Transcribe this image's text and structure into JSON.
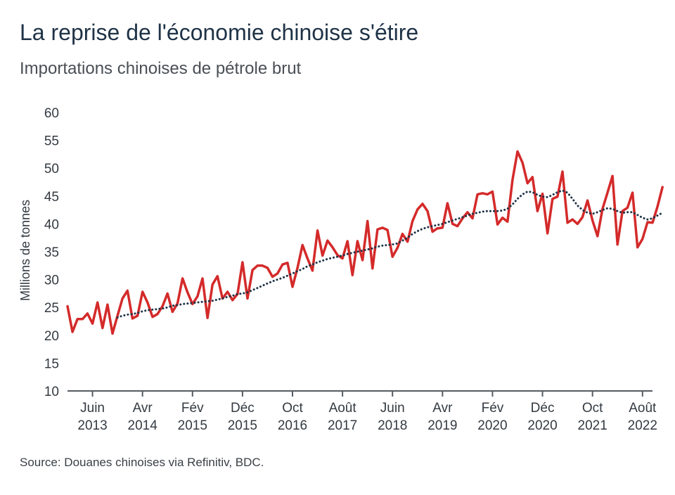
{
  "title": "La reprise de l'économie chinoise s'étire",
  "subtitle": "Importations chinoises de pétrole brut",
  "source": "Source: Douanes chinoises via Refinitiv, BDC.",
  "chart_data": {
    "type": "line",
    "title": "La reprise de l'économie chinoise s'étire",
    "subtitle": "Importations chinoises de pétrole brut",
    "ylabel": "Millions de tonnes",
    "ylim": [
      10,
      60
    ],
    "yticks": [
      10,
      15,
      20,
      25,
      30,
      35,
      40,
      45,
      50,
      55,
      60
    ],
    "xticks": [
      {
        "month": "Juin",
        "year": "2013",
        "date": "2013-06"
      },
      {
        "month": "Avr",
        "year": "2014",
        "date": "2014-04"
      },
      {
        "month": "Fév",
        "year": "2015",
        "date": "2015-02"
      },
      {
        "month": "Déc",
        "year": "2015",
        "date": "2015-12"
      },
      {
        "month": "Oct",
        "year": "2016",
        "date": "2016-10"
      },
      {
        "month": "Août",
        "year": "2017",
        "date": "2017-08"
      },
      {
        "month": "Juin",
        "year": "2018",
        "date": "2018-06"
      },
      {
        "month": "Avr",
        "year": "2019",
        "date": "2019-04"
      },
      {
        "month": "Fév",
        "year": "2020",
        "date": "2020-02"
      },
      {
        "month": "Déc",
        "year": "2020",
        "date": "2020-12"
      },
      {
        "month": "Oct",
        "year": "2021",
        "date": "2021-10"
      },
      {
        "month": "Août",
        "year": "2022",
        "date": "2022-08"
      }
    ],
    "x_start": "2013-01",
    "x_end": "2022-10",
    "grid": false,
    "series": [
      {
        "style": "solid",
        "color": "#d42a2a",
        "values": [
          25.2,
          20.6,
          22.9,
          22.9,
          23.9,
          22.1,
          25.9,
          21.3,
          25.5,
          20.3,
          23.5,
          26.6,
          28.0,
          23.0,
          23.5,
          27.8,
          25.9,
          23.3,
          23.8,
          25.2,
          27.5,
          24.2,
          25.7,
          30.2,
          27.7,
          25.6,
          27.0,
          30.2,
          23.1,
          29.1,
          30.6,
          26.6,
          27.8,
          26.3,
          27.4,
          33.1,
          26.6,
          31.7,
          32.5,
          32.5,
          32.1,
          30.5,
          31.1,
          32.7,
          33.0,
          28.7,
          32.1,
          36.2,
          33.8,
          31.6,
          38.8,
          34.3,
          37.0,
          35.8,
          34.4,
          33.8,
          36.9,
          30.8,
          36.9,
          33.5,
          40.5,
          32.0,
          39.0,
          39.3,
          38.9,
          34.1,
          35.7,
          38.2,
          36.8,
          40.5,
          42.6,
          43.6,
          42.3,
          38.6,
          39.2,
          39.3,
          43.7,
          40.0,
          39.6,
          41.0,
          42.1,
          41.0,
          45.3,
          45.5,
          45.3,
          45.8,
          39.9,
          41.1,
          40.4,
          47.9,
          53.0,
          51.0,
          47.3,
          48.4,
          42.3,
          45.4,
          38.3,
          44.5,
          44.9,
          49.4,
          40.2,
          40.8,
          40.0,
          41.2,
          44.2,
          40.6,
          37.8,
          42.7,
          45.6,
          48.6,
          36.3,
          42.3,
          42.9,
          45.6,
          35.8,
          37.3,
          40.3,
          40.2,
          43.1,
          46.6
        ]
      },
      {
        "style": "dotted",
        "color": "#1f3347",
        "values": [
          null,
          null,
          null,
          null,
          null,
          null,
          null,
          null,
          null,
          null,
          23.2,
          23.5,
          23.7,
          23.8,
          24.0,
          24.3,
          24.5,
          24.6,
          24.7,
          24.8,
          25.0,
          25.3,
          25.4,
          25.6,
          25.7,
          25.8,
          25.9,
          26.0,
          26.1,
          26.2,
          26.4,
          26.6,
          26.9,
          27.1,
          27.4,
          27.5,
          27.7,
          28.1,
          28.5,
          28.9,
          29.3,
          29.7,
          30.0,
          30.3,
          30.7,
          31.1,
          31.5,
          31.9,
          32.4,
          32.7,
          33.1,
          33.4,
          33.7,
          33.9,
          34.1,
          34.3,
          34.6,
          34.8,
          35.0,
          35.2,
          35.4,
          35.6,
          35.9,
          36.1,
          36.2,
          36.3,
          36.5,
          37.0,
          37.5,
          38.2,
          38.7,
          39.1,
          39.4,
          39.6,
          39.8,
          40.0,
          40.3,
          40.6,
          40.9,
          41.2,
          41.5,
          41.8,
          42.0,
          42.2,
          42.3,
          42.3,
          42.3,
          42.4,
          42.7,
          43.5,
          44.5,
          45.3,
          45.8,
          45.7,
          45.2,
          44.9,
          44.8,
          45.2,
          45.7,
          46.0,
          45.6,
          44.5,
          43.3,
          42.5,
          42.0,
          41.8,
          42.1,
          42.5,
          42.8,
          42.7,
          42.3,
          42.0,
          42.1,
          42.1,
          41.6,
          41.1,
          40.8,
          41.0,
          41.5,
          42.0
        ]
      }
    ]
  }
}
